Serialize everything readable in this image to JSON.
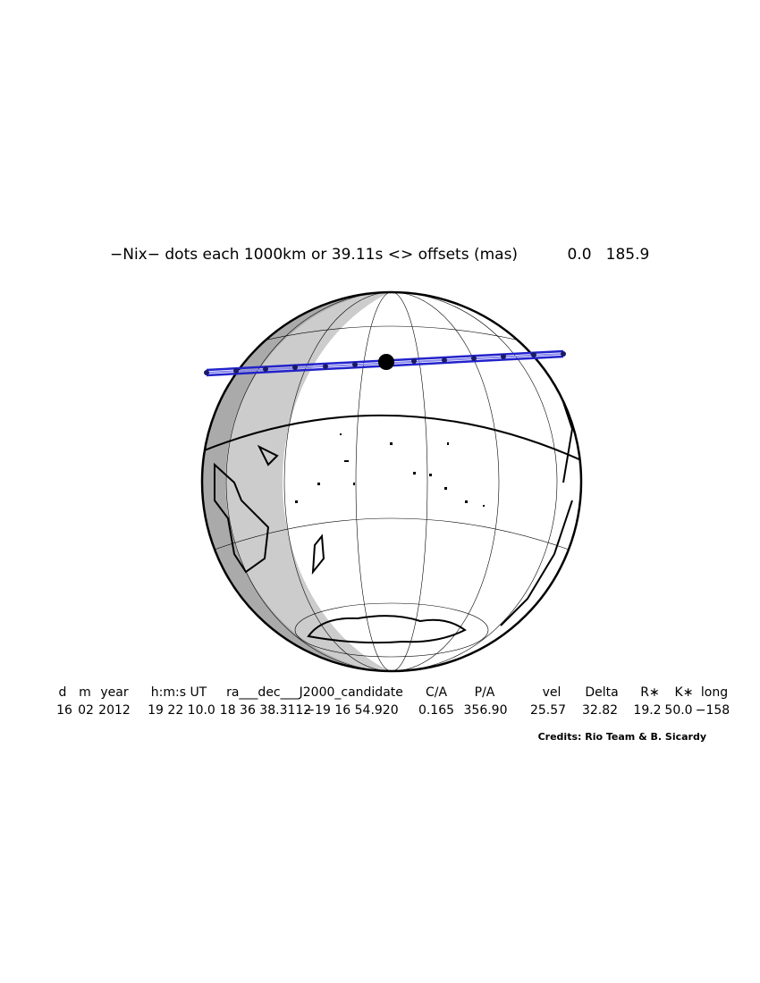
{
  "title": "−Nix− dots each 1000km or 39.11s <> offsets (mas)",
  "offsets": [
    "0.0",
    "185.9"
  ],
  "table": {
    "header": [
      "d",
      "m",
      "year",
      "h:m:s UT",
      "ra___dec___J2000_candidate",
      "C/A",
      "P/A",
      "vel",
      "Delta",
      "R∗",
      "K∗",
      "long"
    ],
    "row": [
      "16",
      "02",
      "2012",
      "19 22 10.0",
      "18 36 38.3112",
      "−19 16 54.920",
      "0.165",
      "356.90",
      "25.57",
      "32.82",
      "19.2",
      "50.0",
      "−158"
    ]
  },
  "credits": "Credits: Rio Team & B. Sicardy"
}
